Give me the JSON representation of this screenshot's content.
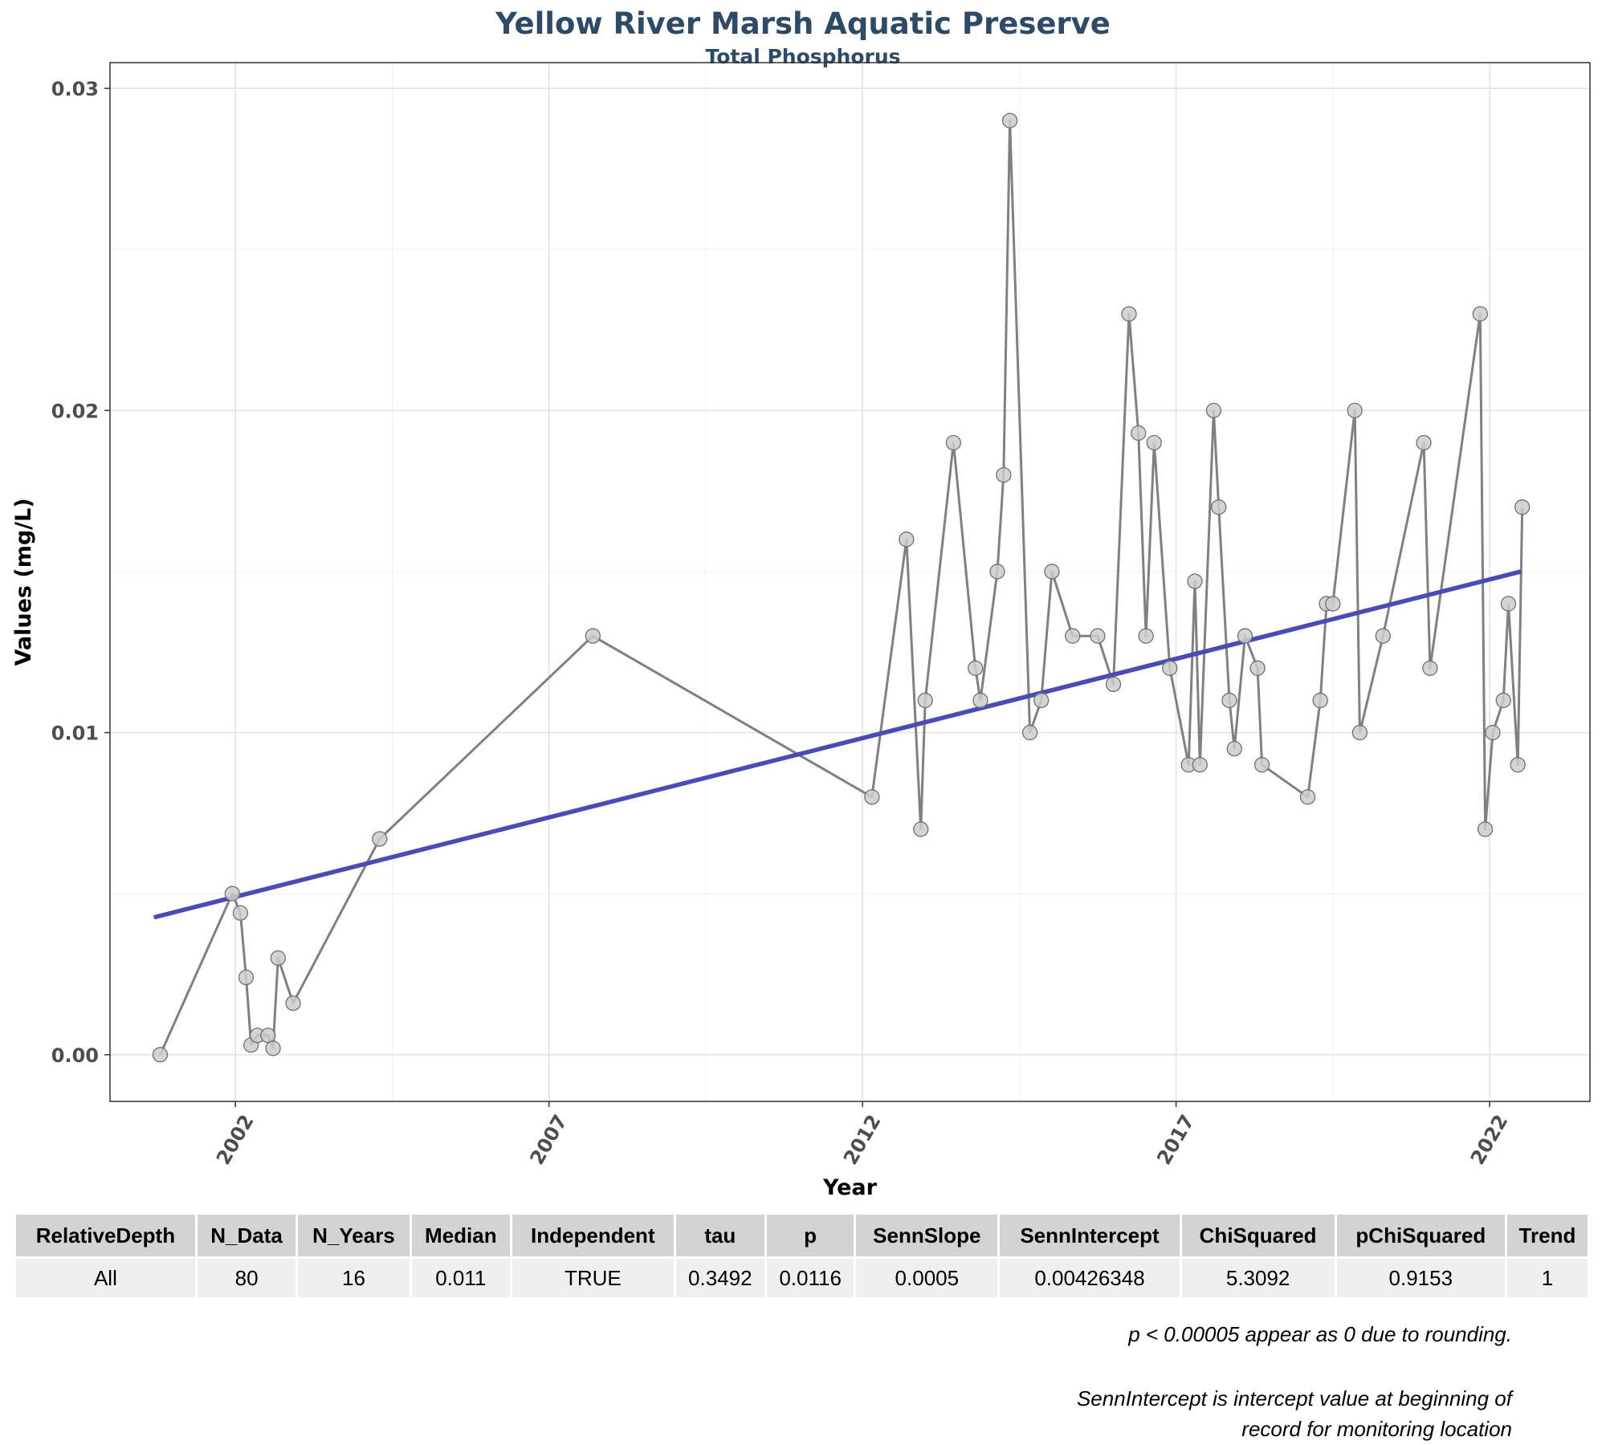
{
  "title": "Yellow River Marsh Aquatic Preserve",
  "subtitle": "Total Phosphorus",
  "chart_data": {
    "type": "line",
    "xlabel": "Year",
    "ylabel": "Values (mg/L)",
    "xlim": [
      2000.0,
      2023.6
    ],
    "ylim": [
      -0.00145,
      0.0308
    ],
    "x_ticks": [
      2002,
      2007,
      2012,
      2017,
      2022
    ],
    "x_tick_labels": [
      "2002",
      "2007",
      "2012",
      "2017",
      "2022"
    ],
    "y_ticks": [
      0,
      0.01,
      0.02,
      0.03
    ],
    "y_tick_labels": [
      "0.00",
      "0.01",
      "0.02",
      "0.03"
    ],
    "grid": true,
    "series": [
      {
        "type": "line+points",
        "color": "#808080",
        "x": [
          2000.8,
          2001.95,
          2002.08,
          2002.17,
          2002.25,
          2002.35,
          2002.52,
          2002.6,
          2002.68,
          2002.92,
          2004.3,
          2007.7,
          2012.15,
          2012.7,
          2012.93,
          2013.0,
          2013.45,
          2013.8,
          2013.88,
          2014.15,
          2014.25,
          2014.35,
          2014.67,
          2014.85,
          2015.02,
          2015.35,
          2015.75,
          2016.0,
          2016.25,
          2016.4,
          2016.52,
          2016.65,
          2016.9,
          2017.2,
          2017.3,
          2017.38,
          2017.6,
          2017.68,
          2017.85,
          2017.93,
          2018.1,
          2018.3,
          2018.37,
          2019.1,
          2019.3,
          2019.4,
          2019.5,
          2019.85,
          2019.93,
          2020.3,
          2020.95,
          2021.05,
          2021.85,
          2021.93,
          2022.05,
          2022.22,
          2022.3,
          2022.45,
          2022.52
        ],
        "y": [
          0.0,
          0.005,
          0.0044,
          0.0024,
          0.0003,
          0.0006,
          0.0006,
          0.0002,
          0.003,
          0.0016,
          0.0067,
          0.013,
          0.008,
          0.016,
          0.007,
          0.011,
          0.019,
          0.012,
          0.011,
          0.015,
          0.018,
          0.029,
          0.01,
          0.011,
          0.015,
          0.013,
          0.013,
          0.0115,
          0.023,
          0.0193,
          0.013,
          0.019,
          0.012,
          0.009,
          0.0147,
          0.009,
          0.02,
          0.017,
          0.011,
          0.0095,
          0.013,
          0.012,
          0.009,
          0.008,
          0.011,
          0.014,
          0.014,
          0.02,
          0.01,
          0.013,
          0.019,
          0.012,
          0.023,
          0.007,
          0.01,
          0.011,
          0.014,
          0.009,
          0.017
        ]
      },
      {
        "type": "trend",
        "color": "#4b4bb5",
        "x": [
          2000.7,
          2022.5
        ],
        "y": [
          0.00426348,
          0.015
        ]
      }
    ]
  },
  "table": {
    "headers": [
      "RelativeDepth",
      "N_Data",
      "N_Years",
      "Median",
      "Independent",
      "tau",
      "p",
      "SennSlope",
      "SennIntercept",
      "ChiSquared",
      "pChiSquared",
      "Trend"
    ],
    "row": [
      "All",
      "80",
      "16",
      "0.011",
      "TRUE",
      "0.3492",
      "0.0116",
      "0.0005",
      "0.00426348",
      "5.3092",
      "0.9153",
      "1"
    ]
  },
  "notes": {
    "note1": "p < 0.00005 appear as 0 due to rounding.",
    "note2_line1": "SennIntercept is intercept value at beginning of",
    "note2_line2": "record for monitoring location"
  }
}
